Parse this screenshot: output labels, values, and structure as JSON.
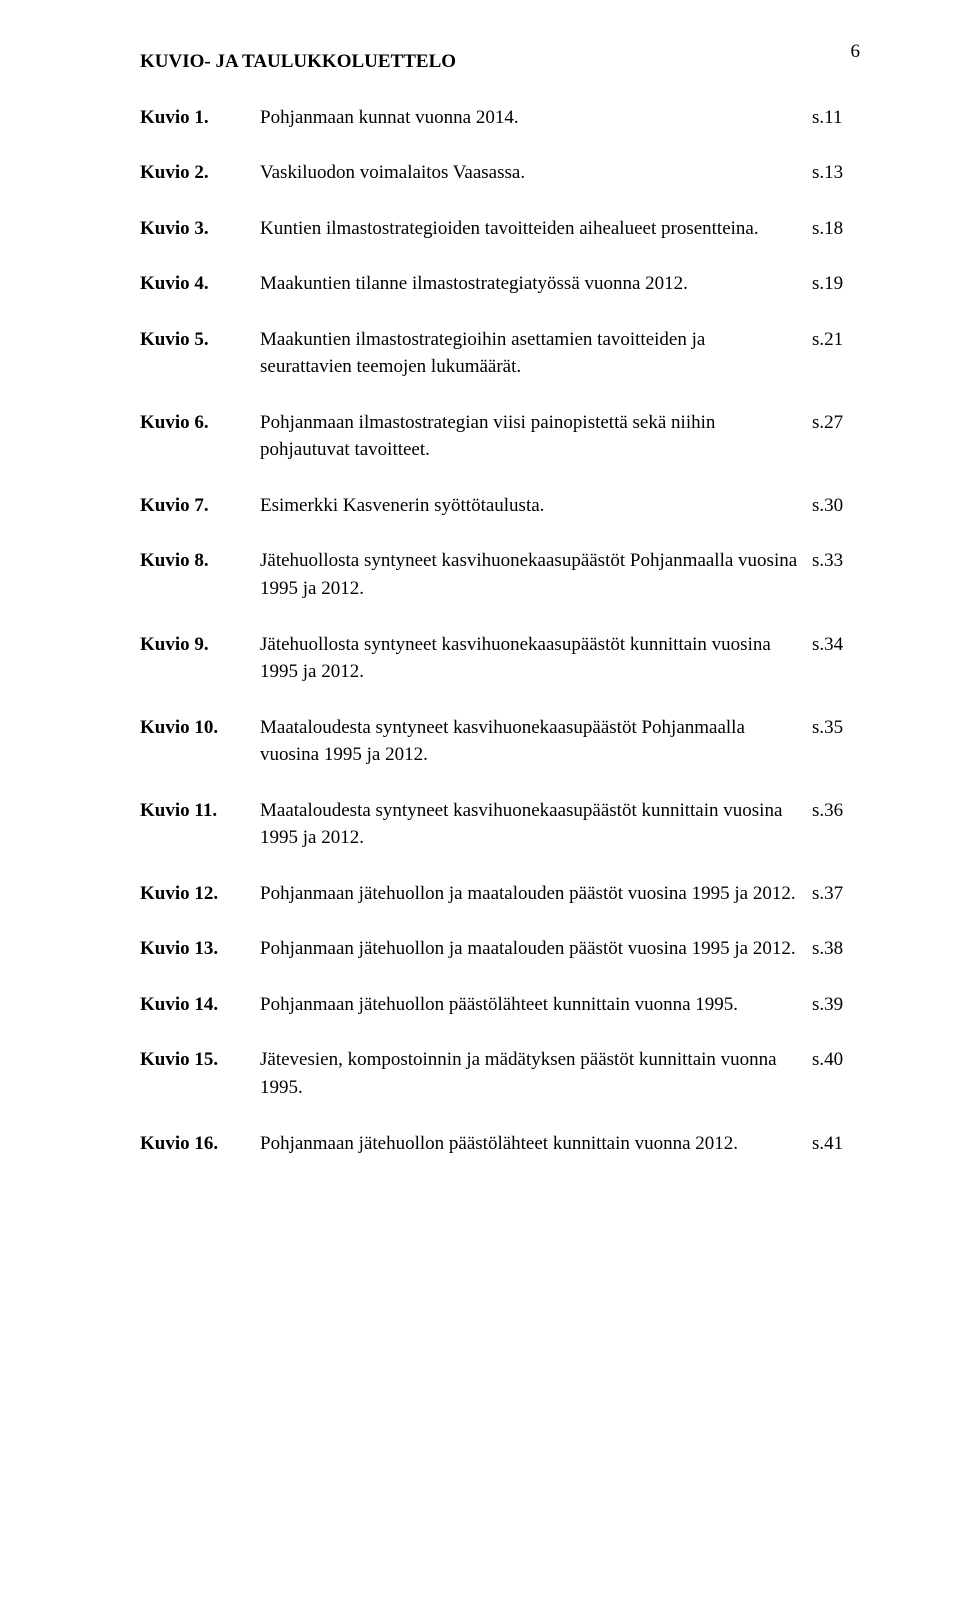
{
  "page_number": "6",
  "title": "KUVIO- JA TAULUKKOLUETTELO",
  "font_family": "Times New Roman",
  "text_color": "#000000",
  "background_color": "#ffffff",
  "entries": [
    {
      "label": "Kuvio 1.",
      "desc": "Pohjanmaan kunnat vuonna 2014.",
      "page": "s.11"
    },
    {
      "label": "Kuvio 2.",
      "desc": "Vaskiluodon voimalaitos Vaasassa.",
      "page": "s.13"
    },
    {
      "label": "Kuvio 3.",
      "desc": "Kuntien ilmastostrategioiden tavoitteiden aihealueet prosentteina.",
      "page": "s.18"
    },
    {
      "label": "Kuvio 4.",
      "desc": "Maakuntien tilanne ilmastostrategiatyössä vuonna 2012.",
      "page": "s.19"
    },
    {
      "label": "Kuvio 5.",
      "desc": "Maakuntien ilmastostrategioihin asettamien tavoitteiden ja seurattavien teemojen lukumäärät.",
      "page": "s.21"
    },
    {
      "label": "Kuvio 6.",
      "desc": "Pohjanmaan ilmastostrategian viisi painopistettä sekä niihin   pohjautuvat tavoitteet.",
      "page": "s.27"
    },
    {
      "label": "Kuvio 7.",
      "desc": "Esimerkki Kasvenerin syöttötaulusta.",
      "page": "s.30"
    },
    {
      "label": "Kuvio 8.",
      "desc": "Jätehuollosta syntyneet kasvihuonekaasupäästöt Pohjanmaalla vuosina 1995 ja 2012.",
      "page": "s.33"
    },
    {
      "label": "Kuvio 9.",
      "desc": "Jätehuollosta syntyneet kasvihuonekaasupäästöt kunnittain vuosina 1995 ja 2012.",
      "page": "s.34"
    },
    {
      "label": "Kuvio 10.",
      "desc": "Maataloudesta syntyneet kasvihuonekaasupäästöt Pohjanmaalla vuosina 1995 ja 2012.",
      "page": "s.35"
    },
    {
      "label": "Kuvio 11.",
      "desc": "Maataloudesta syntyneet kasvihuonekaasupäästöt kunnittain vuosina 1995 ja 2012.",
      "page": "s.36"
    },
    {
      "label": "Kuvio 12.",
      "desc": "Pohjanmaan jätehuollon ja maatalouden päästöt vuosina 1995 ja 2012.",
      "page": "s.37"
    },
    {
      "label": "Kuvio 13.",
      "desc": "Pohjanmaan jätehuollon ja maatalouden päästöt vuosina 1995 ja 2012.",
      "page": "s.38"
    },
    {
      "label": "Kuvio 14.",
      "desc": "Pohjanmaan jätehuollon päästölähteet kunnittain vuonna 1995.",
      "page": "s.39"
    },
    {
      "label": "Kuvio 15.",
      "desc": "Jätevesien, kompostoinnin ja mädätyksen päästöt kunnittain vuonna 1995.",
      "page": "s.40"
    },
    {
      "label": "Kuvio 16.",
      "desc": "Pohjanmaan jätehuollon päästölähteet kunnittain vuonna 2012.",
      "page": "s.41"
    }
  ]
}
